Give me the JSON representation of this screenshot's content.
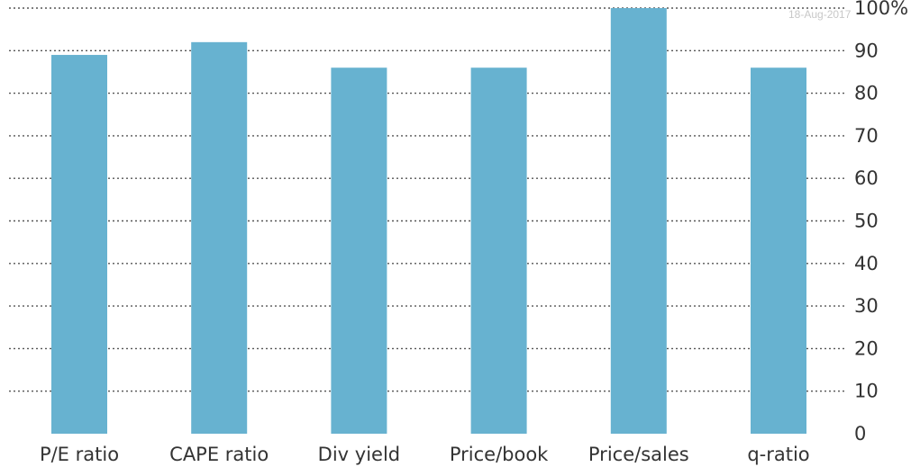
{
  "watermark": "18-Aug-2017",
  "chart_data": {
    "type": "bar",
    "categories": [
      "P/E ratio",
      "CAPE ratio",
      "Div yield",
      "Price/book",
      "Price/sales",
      "q-ratio"
    ],
    "values": [
      89,
      92,
      86,
      86,
      100,
      86
    ],
    "ylim": [
      0,
      100
    ],
    "yticks": [
      0,
      10,
      20,
      30,
      40,
      50,
      60,
      70,
      80,
      90,
      100
    ],
    "ytick_labels": [
      "0",
      "10",
      "20",
      "30",
      "40",
      "50",
      "60",
      "70",
      "80",
      "90",
      "100%"
    ],
    "y_axis_position": "right",
    "grid": true,
    "bar_color": "#67b2d0",
    "grid_color": "#555555",
    "text_color": "#333333"
  }
}
